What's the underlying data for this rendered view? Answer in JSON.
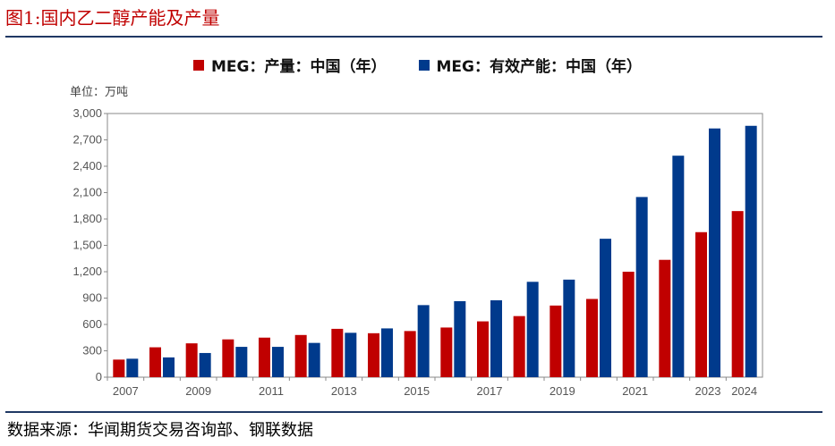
{
  "figure_title": "图1:国内乙二醇产能及产量",
  "source_text": "数据来源：华闻期货交易咨询部、钢联数据",
  "unit_label": "单位：万吨",
  "colors": {
    "production": "#c00000",
    "capacity": "#003a8c",
    "title": "#c00000",
    "rule": "#1f3864"
  },
  "chart_data": {
    "type": "bar",
    "title": "",
    "xlabel": "",
    "ylabel": "单位：万吨",
    "categories": [
      "2007",
      "2008",
      "2009",
      "2010",
      "2011",
      "2012",
      "2013",
      "2014",
      "2015",
      "2016",
      "2017",
      "2018",
      "2019",
      "2020",
      "2021",
      "2022",
      "2023",
      "2024"
    ],
    "x_tick_labels": [
      "2007",
      "",
      "2009",
      "",
      "2011",
      "",
      "2013",
      "",
      "2015",
      "",
      "2017",
      "",
      "2019",
      "",
      "2021",
      "",
      "2023",
      "2024"
    ],
    "series": [
      {
        "name": "MEG：产量：中国（年）",
        "color": "#c00000",
        "values": [
          200,
          340,
          385,
          430,
          450,
          480,
          550,
          500,
          525,
          565,
          635,
          695,
          815,
          890,
          1200,
          1335,
          1650,
          1890
        ]
      },
      {
        "name": "MEG：有效产能：中国（年）",
        "color": "#003a8c",
        "values": [
          210,
          225,
          275,
          345,
          345,
          390,
          505,
          555,
          820,
          865,
          875,
          1085,
          1110,
          1575,
          2050,
          2520,
          2830,
          2860
        ]
      }
    ],
    "ylim": [
      0,
      3000
    ],
    "y_ticks": [
      0,
      300,
      600,
      900,
      1200,
      1500,
      1800,
      2100,
      2400,
      2700,
      3000
    ],
    "y_tick_labels": [
      "0",
      "300",
      "600",
      "900",
      "1,200",
      "1,500",
      "1,800",
      "2,100",
      "2,400",
      "2,700",
      "3,000"
    ],
    "grid": false,
    "legend_position": "top"
  }
}
